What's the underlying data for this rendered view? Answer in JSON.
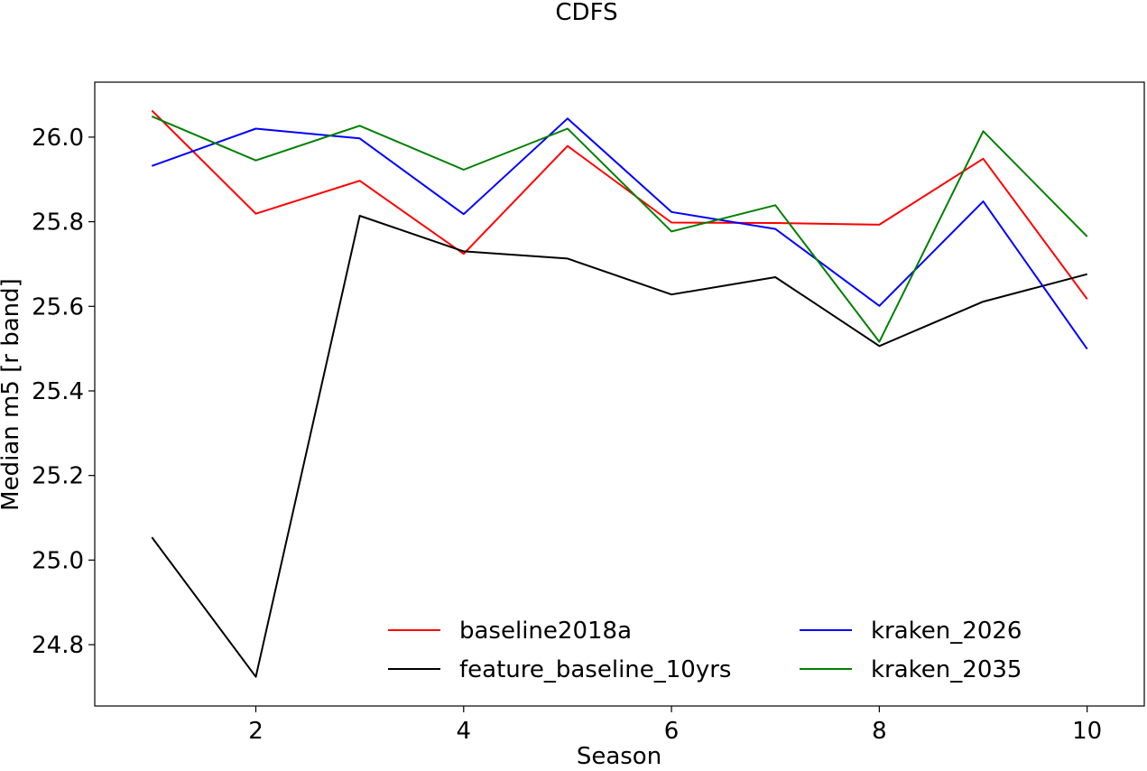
{
  "chart_data": {
    "type": "line",
    "title": "CDFS",
    "xlabel": "Season",
    "ylabel": "Median m5 [r band]",
    "xlim": [
      0.45,
      10.55
    ],
    "ylim": [
      24.655,
      26.13
    ],
    "x_ticks": [
      2,
      4,
      6,
      8,
      10
    ],
    "y_ticks": [
      24.8,
      25.0,
      25.2,
      25.4,
      25.6,
      25.8,
      26.0
    ],
    "y_tick_labels": [
      "24.8",
      "25.0",
      "25.2",
      "25.4",
      "25.6",
      "25.8",
      "26.0"
    ],
    "grid": false,
    "legend_position": "lower-center, 2 columns",
    "x": [
      1,
      2,
      3,
      4,
      5,
      6,
      7,
      8,
      9,
      10
    ],
    "series": [
      {
        "name": "baseline2018a",
        "color": "#ff0000",
        "values": [
          26.063,
          25.819,
          25.897,
          25.724,
          25.979,
          25.798,
          25.797,
          25.793,
          25.949,
          25.617
        ]
      },
      {
        "name": "feature_baseline_10yrs",
        "color": "#000000",
        "values": [
          25.054,
          24.724,
          25.814,
          25.73,
          25.713,
          25.628,
          25.669,
          25.506,
          25.611,
          25.676
        ]
      },
      {
        "name": "kraken_2026",
        "color": "#0000ff",
        "values": [
          25.932,
          26.02,
          25.997,
          25.818,
          26.044,
          25.823,
          25.783,
          25.601,
          25.848,
          25.499
        ]
      },
      {
        "name": "kraken_2035",
        "color": "#008000",
        "values": [
          26.049,
          25.945,
          26.027,
          25.923,
          26.02,
          25.777,
          25.839,
          25.516,
          26.014,
          25.765
        ]
      }
    ]
  }
}
